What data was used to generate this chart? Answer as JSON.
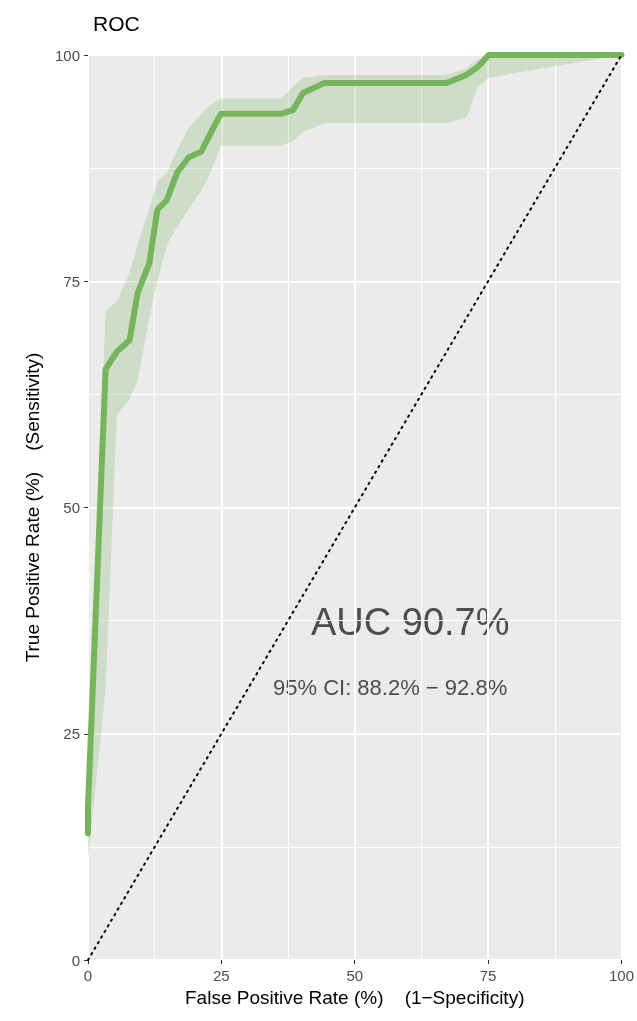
{
  "chart_data": {
    "type": "line",
    "title": "ROC",
    "xlabel": "False Positive Rate (%)    (1−Specificity)",
    "ylabel": "True Positive Rate (%)    (Sensitivity)",
    "annotations": [
      "AUC 90.7%",
      "95% CI: 88.2% − 92.8%"
    ],
    "series": [
      {
        "color": "#77b55d",
        "x": [
          0,
          0,
          3.3,
          5.4,
          7.8,
          9.3,
          11.5,
          13,
          14.8,
          16.7,
          18.9,
          21.2,
          23,
          24.9,
          36.2,
          38.4,
          40.3,
          44.3,
          67.2,
          70.9,
          73.1,
          75.1,
          100
        ],
        "values": [
          14,
          17,
          65.3,
          67.2,
          68.5,
          73.7,
          77,
          82.9,
          84,
          87,
          88.7,
          89.3,
          91.4,
          93.5,
          93.5,
          93.9,
          95.8,
          96.9,
          96.9,
          97.8,
          98.7,
          100,
          100
        ],
        "lower": [
          9.5,
          11,
          30,
          60.2,
          62,
          64,
          71,
          75,
          79,
          81,
          83,
          85,
          87,
          90,
          90,
          90.5,
          91.5,
          92.5,
          92.5,
          93,
          96.5,
          97.5,
          100
        ],
        "upper": [
          17,
          20,
          71.7,
          72.8,
          76,
          79,
          83,
          86,
          87,
          89.5,
          92,
          93.5,
          94.5,
          95.2,
          95.2,
          96.5,
          97.5,
          97.8,
          97.8,
          98.5,
          99.5,
          100,
          100
        ]
      },
      {
        "color": "#000000",
        "line_style": "dotted",
        "x": [
          0,
          100
        ],
        "values": [
          0,
          100
        ]
      }
    ],
    "xlim": [
      0,
      100
    ],
    "ylim": [
      0,
      100
    ],
    "xticks": [
      0,
      25,
      50,
      75,
      100
    ],
    "yticks": [
      0,
      25,
      50,
      75,
      100
    ],
    "grid": true,
    "marker": "none",
    "line_style": "solid"
  }
}
